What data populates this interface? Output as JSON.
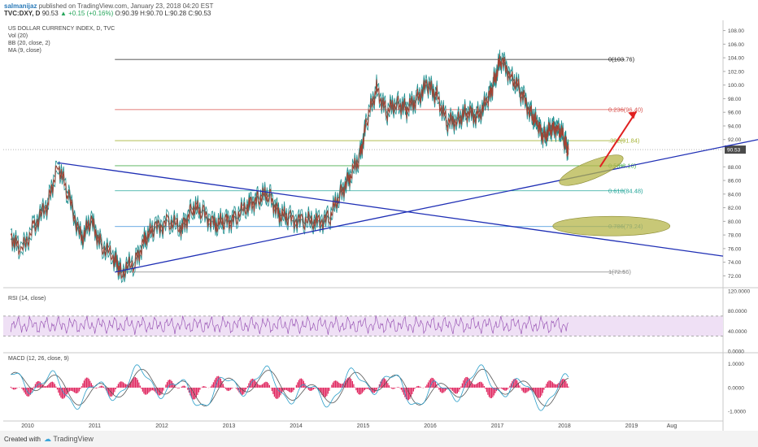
{
  "header": {
    "username": "salmanijaz",
    "published_text": "published on TradingView.com, January 23, 2018 04:20 EST",
    "symbol": "TVC:DXY, D",
    "quote": "90.53",
    "change": "▲ +0.15 (+0.16%)",
    "ohlc": "O:90.39 H:90.70 L:90.28 C:90.53"
  },
  "legend": {
    "title": "US DOLLAR CURRENCY INDEX, D, TVC",
    "vol": "Vol (20)",
    "bb": "BB (20, close, 2)",
    "ma": "MA (9, close)"
  },
  "rsi_label": "RSI (14, close)",
  "macd_label": "MACD (12, 26, close, 9)",
  "footer": {
    "created_with": "Created with",
    "brand": "TradingView"
  },
  "colors": {
    "price": "#8a4a3a",
    "bb": "#1f8f8f",
    "trendline": "#1f2fb5",
    "arrow": "#e02020",
    "ellipse_fill": "#b5b54a",
    "rsi": "#9b59b6",
    "rsi_band": "#efe0f5",
    "macd_line": "#2a9ec9",
    "signal_line": "#555555",
    "histogram": "#e0245e"
  },
  "chart_data": [
    {
      "type": "line",
      "title": "US DOLLAR CURRENCY INDEX, D, TVC",
      "x_ticks": [
        "2010",
        "2011",
        "2012",
        "2013",
        "2014",
        "2015",
        "2016",
        "2017",
        "2018",
        "2019",
        "Aug"
      ],
      "y_ticks": [
        "108.00",
        "106.00",
        "104.00",
        "102.00",
        "100.00",
        "98.00",
        "96.00",
        "94.00",
        "92.00",
        "88.00",
        "86.00",
        "84.00",
        "82.00",
        "80.00",
        "78.00",
        "76.00",
        "74.00",
        "72.00"
      ],
      "ylim": [
        70.5,
        109.5
      ],
      "last_price": "90.53",
      "series": [
        {
          "x": [
            2009.75,
            2009.9,
            2010.1,
            2010.3,
            2010.45,
            2010.6,
            2010.8,
            2010.95,
            2011.1,
            2011.3,
            2011.4,
            2011.6,
            2011.75,
            2011.9,
            2012.1,
            2012.3,
            2012.45,
            2012.6,
            2012.8,
            2012.95,
            2013.1,
            2013.3,
            2013.45,
            2013.6,
            2013.75,
            2013.9,
            2014.1,
            2014.3,
            2014.5,
            2014.65,
            2014.8,
            2014.95,
            2015.05,
            2015.2,
            2015.35,
            2015.5,
            2015.65,
            2015.8,
            2015.95,
            2016.1,
            2016.25,
            2016.4,
            2016.55,
            2016.7,
            2016.85,
            2016.95,
            2017.05,
            2017.2,
            2017.35,
            2017.5,
            2017.6,
            2017.7,
            2017.8,
            2017.9,
            2018.0,
            2018.06
          ],
          "y": [
            78.0,
            75.5,
            79.5,
            82.5,
            88.5,
            84.0,
            77.5,
            80.0,
            76.5,
            74.5,
            72.6,
            74.0,
            77.5,
            79.0,
            80.0,
            79.0,
            82.0,
            81.5,
            79.5,
            80.0,
            80.5,
            82.5,
            83.5,
            84.0,
            81.0,
            80.5,
            80.0,
            80.0,
            80.5,
            84.0,
            86.5,
            89.5,
            94.5,
            99.5,
            96.0,
            97.5,
            96.5,
            98.0,
            100.0,
            98.5,
            94.5,
            95.0,
            96.0,
            95.5,
            97.5,
            100.5,
            103.76,
            101.5,
            99.0,
            96.0,
            94.0,
            92.5,
            93.5,
            94.0,
            92.0,
            90.53
          ]
        }
      ],
      "fibonacci": [
        {
          "label": "0(103.76)",
          "value": 103.76,
          "color": "#222222"
        },
        {
          "label": "0.236(96.40)",
          "value": 96.4,
          "color": "#d9534f"
        },
        {
          "label": ".382(91.84)",
          "value": 91.84,
          "color": "#a8b53a"
        },
        {
          "label": "0.5(88.16)",
          "value": 88.16,
          "color": "#4caf50"
        },
        {
          "label": "0.618(84.48)",
          "value": 84.48,
          "color": "#26a69a"
        },
        {
          "label": "0.786(79.24)",
          "value": 79.24,
          "color": "#3a8fd9"
        },
        {
          "label": "1(72.56)",
          "value": 72.56,
          "color": "#888888"
        }
      ]
    },
    {
      "type": "line",
      "title": "RSI (14, close)",
      "y_ticks": [
        "120.0000",
        "80.0000",
        "40.0000",
        "0.0000"
      ],
      "ylim": [
        0,
        120
      ],
      "band": [
        30,
        70
      ]
    },
    {
      "type": "line",
      "title": "MACD (12, 26, close, 9)",
      "y_ticks": [
        "1.0000",
        "0.0000",
        "-1.0000"
      ],
      "ylim": [
        -1.3,
        1.4
      ]
    }
  ]
}
